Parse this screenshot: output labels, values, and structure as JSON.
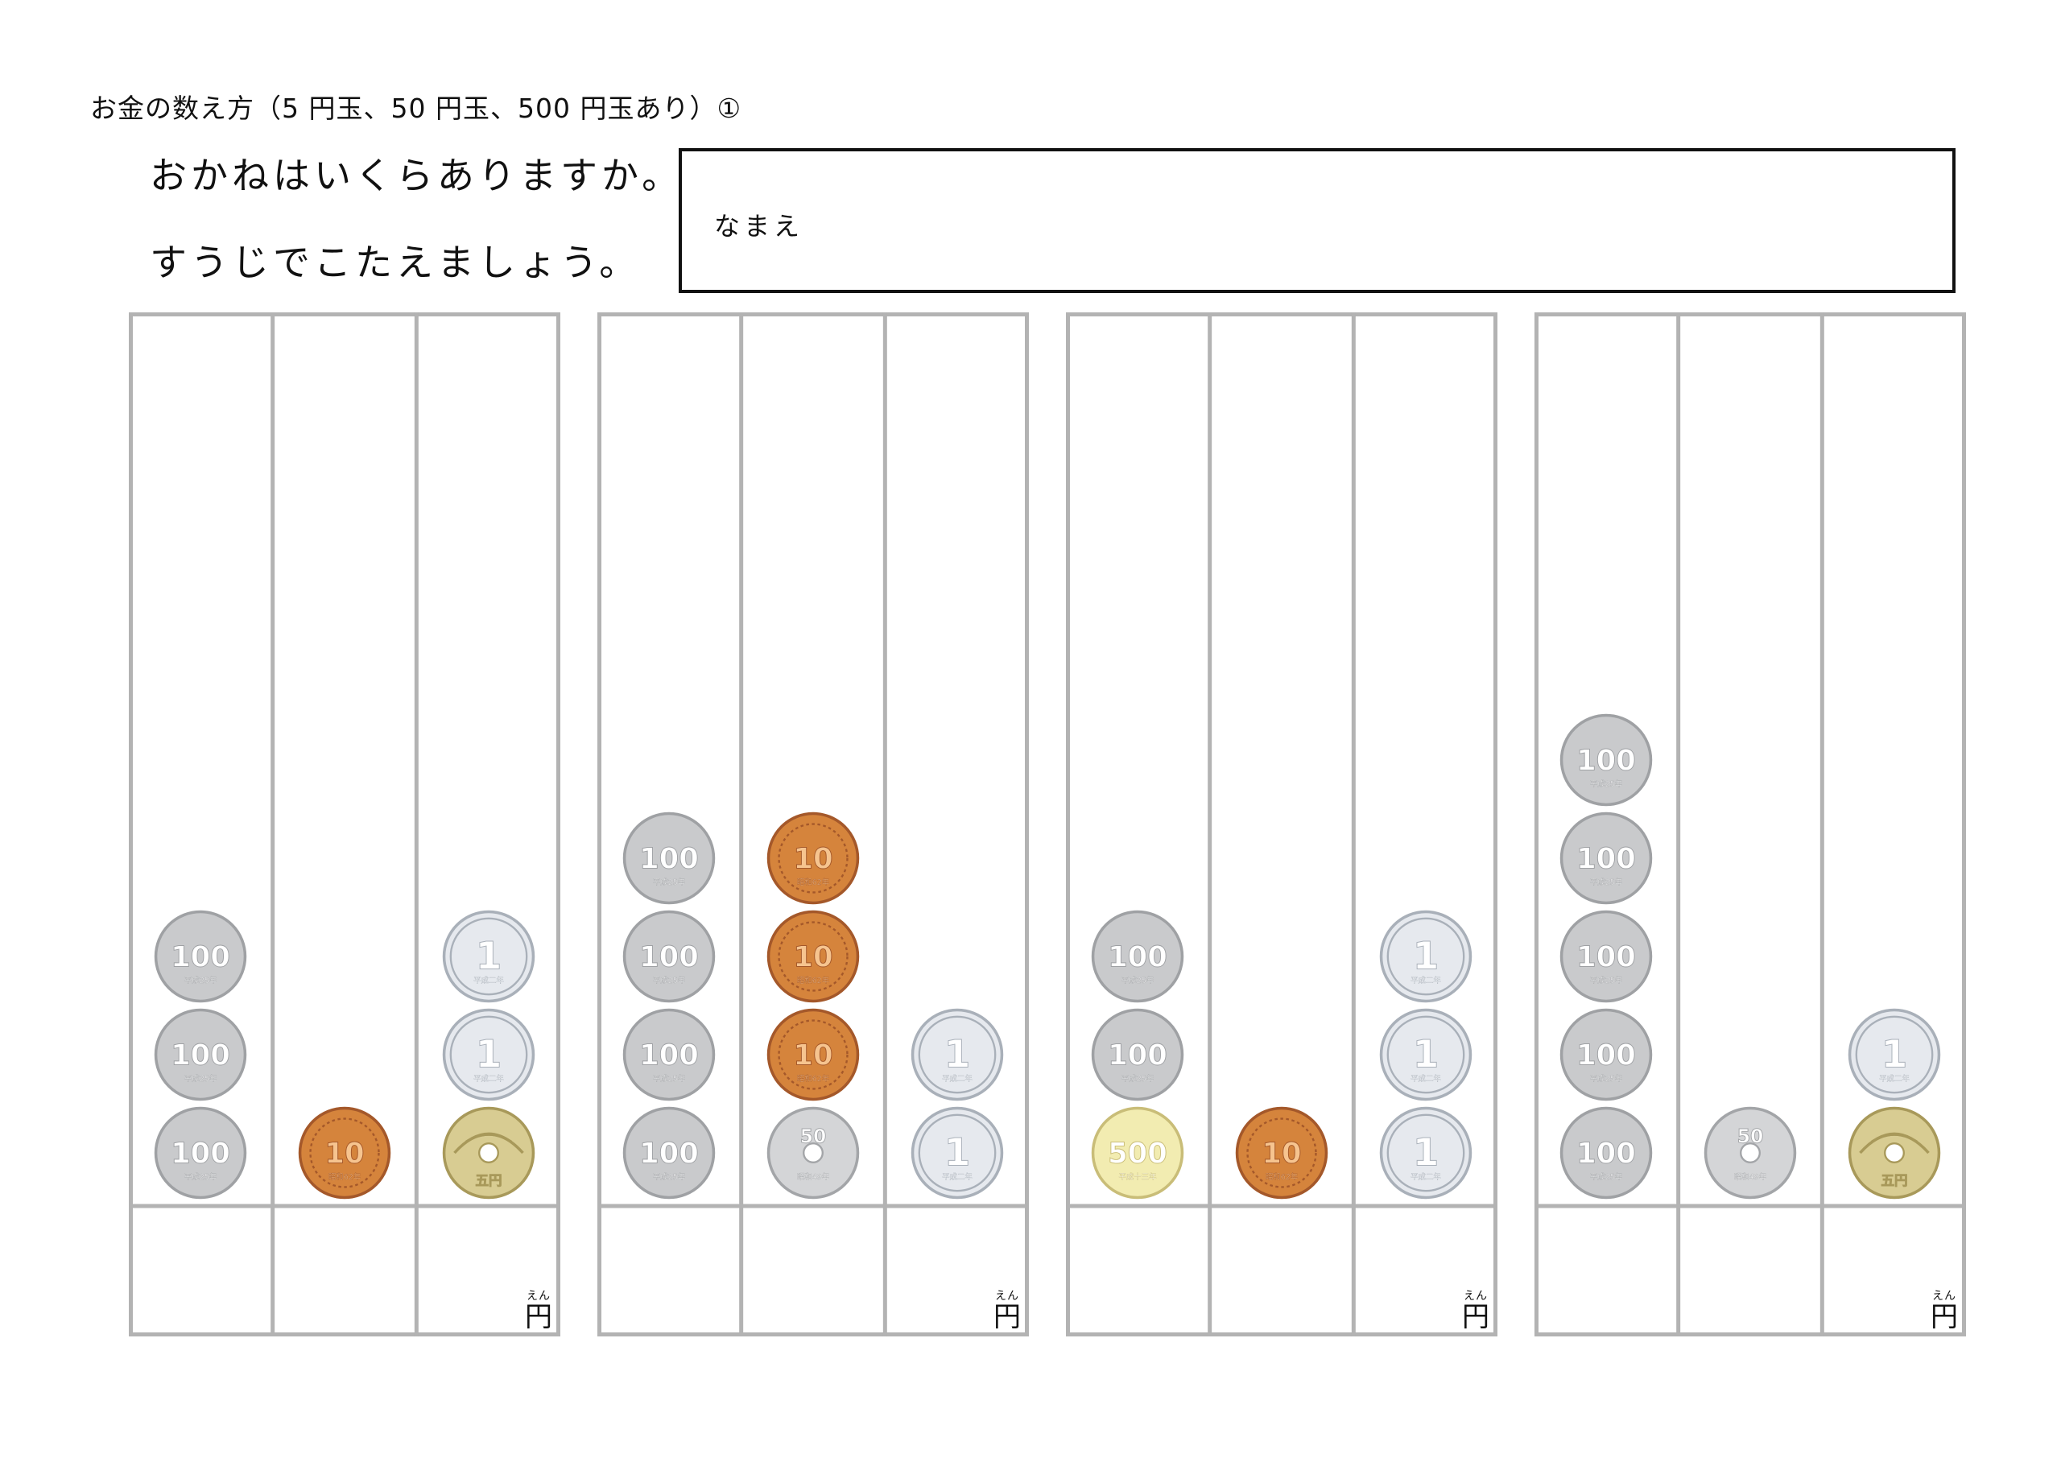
{
  "title": "お金の数え方（5 円玉、50 円玉、500 円玉あり）①",
  "instructions": {
    "line1": "おかねはいくらありますか。",
    "line2": "すうじでこたえましょう。"
  },
  "name_box": {
    "label": "なまえ"
  },
  "answer_unit": {
    "char": "円",
    "ruby": "えん"
  },
  "coin_styles": {
    "c100": {
      "label": "100",
      "sub": "平成25年",
      "fill": "#c9cacc",
      "edge": "#9fa1a4"
    },
    "c10": {
      "label": "10",
      "sub": "昭和62年",
      "fill": "#d5843c",
      "edge": "#a4582a"
    },
    "c1": {
      "label": "1",
      "sub": "平成二年",
      "fill": "#e6e9ee",
      "edge": "#a9b0b9"
    },
    "c5": {
      "label": "五円",
      "sub": "",
      "fill": "#d8cc92",
      "edge": "#a8995a"
    },
    "c50": {
      "label": "50",
      "sub": "昭和49年",
      "fill": "#d4d5d7",
      "edge": "#a3a5a8"
    },
    "c500": {
      "label": "500",
      "sub": "平成十三年",
      "fill": "#f2ecb1",
      "edge": "#c9bd78"
    }
  },
  "problems": [
    {
      "columns": [
        [
          "c100",
          "c100",
          "c100"
        ],
        [
          "c10"
        ],
        [
          "c5",
          "c1",
          "c1"
        ]
      ]
    },
    {
      "columns": [
        [
          "c100",
          "c100",
          "c100",
          "c100"
        ],
        [
          "c50",
          "c10",
          "c10",
          "c10"
        ],
        [
          "c1",
          "c1"
        ]
      ]
    },
    {
      "columns": [
        [
          "c500",
          "c100",
          "c100"
        ],
        [
          "c10"
        ],
        [
          "c1",
          "c1",
          "c1"
        ]
      ]
    },
    {
      "columns": [
        [
          "c100",
          "c100",
          "c100",
          "c100",
          "c100"
        ],
        [
          "c50"
        ],
        [
          "c5",
          "c1"
        ]
      ]
    }
  ]
}
